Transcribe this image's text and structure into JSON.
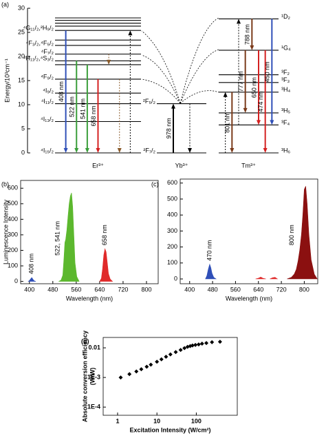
{
  "chart_data": [
    {
      "type": "energy-diagram",
      "panel": "(a)",
      "ylabel": "Energy/10³cm⁻¹",
      "ylim": [
        0,
        30
      ],
      "yticks": [
        0,
        5,
        10,
        15,
        20,
        25,
        30
      ],
      "ions": [
        {
          "name": "Er³⁺",
          "levels": [
            {
              "label": "⁴I₁₅/₂",
              "energy": 0
            },
            {
              "label": "⁴I₁₃/₂",
              "energy": 6.5
            },
            {
              "label": "⁴I₁₁/₂",
              "energy": 10.2
            },
            {
              "label": "⁴I₉/₂",
              "energy": 12.4
            },
            {
              "label": "⁴F₉/₂",
              "energy": 15.3
            },
            {
              "label": null,
              "energy": 18.3
            },
            {
              "label": "²H₁₁/₂,⁴S₃/₂",
              "energy": 19.1
            },
            {
              "label": "⁴F₇/₂",
              "energy": 20.5
            },
            {
              "label": "⁴F₃/₂,⁴F₅/₂",
              "energy": 22.3
            },
            {
              "label": null,
              "energy": 23.4
            },
            {
              "label": "⁴G₁₁/₂,²H₉/₂",
              "energy": 25.4
            },
            {
              "label": null,
              "energy": 26.3
            },
            {
              "label": null,
              "energy": 26.9
            },
            {
              "label": null,
              "energy": 27.5
            },
            {
              "label": null,
              "energy": 28.0
            }
          ],
          "transitions": [
            {
              "label": "408 nm",
              "from": 25.4,
              "to": 0,
              "color": "#2f4fb8",
              "style": "solid"
            },
            {
              "label": "522 nm",
              "from": 19.1,
              "to": 0,
              "color": "#3a9e3a",
              "style": "solid"
            },
            {
              "label": "541 nm",
              "from": 18.3,
              "to": 0,
              "color": "#3a9e3a",
              "style": "solid"
            },
            {
              "label": "658 nm",
              "from": 15.3,
              "to": 0,
              "color": "#d42020",
              "style": "solid"
            },
            {
              "label": null,
              "from": 20.5,
              "to": 18.3,
              "color": "#8a5a2a",
              "style": "dotted"
            },
            {
              "label": null,
              "from": 15.3,
              "to": 0,
              "color": "#8a5a2a",
              "style": "dotted"
            },
            {
              "label": null,
              "from": 0,
              "to": 25.4,
              "color": "#000000",
              "style": "dotted"
            }
          ]
        },
        {
          "name": "Yb³⁺",
          "levels": [
            {
              "label": "²F₇/₂",
              "energy": 0
            },
            {
              "label": "²F₅/₂",
              "energy": 10.2
            }
          ],
          "transitions": [
            {
              "label": "978 nm",
              "from": 0,
              "to": 10.2,
              "color": "#000000",
              "style": "solid"
            },
            {
              "label": null,
              "from": 10.2,
              "to": 0,
              "color": "#000000",
              "style": "dotted"
            }
          ]
        },
        {
          "name": "Tm³⁺",
          "levels": [
            {
              "label": "³H₆",
              "energy": 0
            },
            {
              "label": "³F₄",
              "energy": 5.8
            },
            {
              "label": "³H₅",
              "energy": 8.3
            },
            {
              "label": "³H₄",
              "energy": 12.6
            },
            {
              "label": "³F₃",
              "energy": 14.6
            },
            {
              "label": "³F₂",
              "energy": 16.2
            },
            {
              "label": "¹G₄",
              "energy": 21.3
            },
            {
              "label": "¹D₂",
              "energy": 27.8
            }
          ],
          "transitions": [
            {
              "label": null,
              "from": 0,
              "to": 12.6,
              "color": "#000000",
              "style": "dotted"
            },
            {
              "label": "801 nm",
              "from": 12.6,
              "to": 0,
              "color": "#7a3a1a",
              "style": "solid"
            },
            {
              "label": null,
              "from": 5.8,
              "to": 27.8,
              "color": "#000000",
              "style": "dotted"
            },
            {
              "label": "777 nm",
              "from": 21.3,
              "to": 8.3,
              "color": "#7a3a1a",
              "style": "solid"
            },
            {
              "label": "788 nm",
              "from": 27.8,
              "to": 21.3,
              "color": "#7a3a1a",
              "style": "solid"
            },
            {
              "label": "650 nm",
              "from": 21.3,
              "to": 5.8,
              "color": "#d42020",
              "style": "solid"
            },
            {
              "label": "474 nm",
              "from": 21.3,
              "to": 0,
              "color": "#d42020",
              "style": "solid"
            },
            {
              "label": "450 nm",
              "from": 27.8,
              "to": 5.8,
              "color": "#2f4fb8",
              "style": "solid"
            }
          ]
        }
      ]
    },
    {
      "type": "area",
      "panel": "(b)",
      "xlabel": "Wavelength (nm)",
      "ylabel": "Luminescence Intensity",
      "xlim": [
        370,
        840
      ],
      "xticks": [
        400,
        480,
        560,
        640,
        720,
        800
      ],
      "ylim": [
        -15,
        650
      ],
      "yticks": [
        0,
        100,
        200,
        300,
        400,
        500,
        600
      ],
      "series": [
        {
          "label": "408 nm",
          "color": "#2f4fb8",
          "x": [
            396,
            400,
            404,
            408,
            412,
            416,
            422
          ],
          "values": [
            0,
            6,
            16,
            25,
            14,
            4,
            0
          ]
        },
        {
          "label": "522, 541 nm",
          "color": "#5cb82e",
          "x": [
            500,
            508,
            514,
            518,
            521,
            524,
            528,
            532,
            536,
            540,
            544,
            548,
            552,
            556,
            562,
            570
          ],
          "values": [
            0,
            8,
            40,
            150,
            250,
            270,
            330,
            420,
            500,
            550,
            570,
            480,
            300,
            120,
            30,
            0
          ]
        },
        {
          "label": "658 nm",
          "color": "#e02a2a",
          "x": [
            640,
            646,
            650,
            654,
            658,
            662,
            666,
            670,
            676,
            684
          ],
          "values": [
            0,
            20,
            80,
            170,
            210,
            190,
            120,
            50,
            15,
            0
          ]
        }
      ]
    },
    {
      "type": "area",
      "panel": "(c)",
      "xlabel": "Wavelength (nm)",
      "xlim": [
        367,
        847
      ],
      "xticks": [
        400,
        480,
        560,
        640,
        720,
        800
      ],
      "ylim": [
        -30,
        625
      ],
      "yticks": [
        0,
        100,
        200,
        300,
        400,
        500,
        600
      ],
      "series": [
        {
          "label": "470 nm",
          "color": "#2f4fb8",
          "x": [
            455,
            460,
            465,
            470,
            474,
            478,
            484,
            492
          ],
          "values": [
            0,
            20,
            60,
            92,
            70,
            35,
            10,
            0
          ]
        },
        {
          "label": null,
          "color": "#e02a2a",
          "x": [
            630,
            640,
            648,
            656,
            666
          ],
          "values": [
            0,
            5,
            12,
            4,
            0
          ]
        },
        {
          "label": null,
          "color": "#e02a2a",
          "x": [
            680,
            690,
            698,
            706
          ],
          "values": [
            0,
            8,
            10,
            0
          ]
        },
        {
          "label": "800 nm",
          "color": "#8b1010",
          "x": [
            740,
            755,
            765,
            772,
            778,
            784,
            790,
            795,
            800,
            805,
            810,
            816,
            824,
            835,
            845
          ],
          "values": [
            0,
            10,
            30,
            60,
            110,
            180,
            280,
            400,
            560,
            580,
            470,
            280,
            120,
            30,
            0
          ]
        }
      ]
    },
    {
      "type": "scatter",
      "panel": "(d)",
      "xlabel": "Excitation Intensity (W/cm²)",
      "ylabel": [
        "Absolute conversion efficiency",
        "(W/W)"
      ],
      "xlog": true,
      "ylog": true,
      "xlim": [
        0.43,
        1100
      ],
      "ylim": [
        5.3e-05,
        0.0224
      ],
      "xticks": [
        1,
        10,
        100
      ],
      "yticks": [
        {
          "value": 0.0001,
          "label": "1E-4"
        },
        {
          "value": 0.001,
          "label": "1E-3"
        },
        0.01
      ],
      "color": "#000000",
      "x": [
        1.2,
        2,
        3,
        4,
        5.5,
        7,
        10,
        13,
        17,
        22,
        30,
        40,
        50,
        60,
        70,
        80,
        95,
        115,
        140,
        180,
        250,
        400
      ],
      "values": [
        0.001,
        0.0013,
        0.0016,
        0.0019,
        0.0023,
        0.0027,
        0.0034,
        0.0041,
        0.005,
        0.006,
        0.0072,
        0.0085,
        0.0098,
        0.0108,
        0.0115,
        0.012,
        0.0125,
        0.013,
        0.0138,
        0.0145,
        0.0155,
        0.016
      ]
    }
  ]
}
